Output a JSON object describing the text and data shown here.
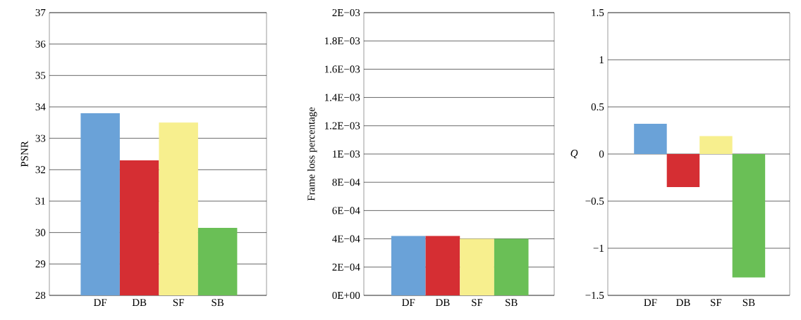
{
  "chart_data": [
    {
      "type": "bar",
      "ylabel": "PSNR",
      "categories": [
        "DF",
        "DB",
        "SF",
        "SB"
      ],
      "values": [
        33.8,
        32.3,
        33.5,
        30.15
      ],
      "colors": [
        "#6aa2d8",
        "#d52e33",
        "#f7ef8e",
        "#6abf56"
      ],
      "ylim": [
        28,
        37
      ],
      "yticks": [
        28,
        29,
        30,
        31,
        32,
        33,
        34,
        35,
        36,
        37
      ],
      "grid": "y"
    },
    {
      "type": "bar",
      "ylabel": "Frame loss percentage",
      "categories": [
        "DF",
        "DB",
        "SF",
        "SB"
      ],
      "values": [
        0.00042,
        0.00042,
        0.0004,
        0.0004
      ],
      "colors": [
        "#6aa2d8",
        "#d52e33",
        "#f7ef8e",
        "#6abf56"
      ],
      "ylim": [
        0,
        0.002
      ],
      "yticks": [
        {
          "value": 0,
          "label": "0E+00"
        },
        {
          "value": 0.0002,
          "label": "2E−04"
        },
        {
          "value": 0.0004,
          "label": "4E−04"
        },
        {
          "value": 0.0006,
          "label": "6E−04"
        },
        {
          "value": 0.0008,
          "label": "8E−04"
        },
        {
          "value": 0.001,
          "label": "1E−03"
        },
        {
          "value": 0.0012,
          "label": "1.2E−03"
        },
        {
          "value": 0.0014,
          "label": "1.4E−03"
        },
        {
          "value": 0.0016,
          "label": "1.6E−03"
        },
        {
          "value": 0.0018,
          "label": "1.8E−03"
        },
        {
          "value": 0.002,
          "label": "2E−03"
        }
      ],
      "grid": "y"
    },
    {
      "type": "bar",
      "ylabel": "Q",
      "categories": [
        "DF",
        "DB",
        "SF",
        "SB"
      ],
      "values": [
        0.32,
        -0.35,
        0.19,
        -1.31
      ],
      "colors": [
        "#6aa2d8",
        "#d52e33",
        "#f7ef8e",
        "#6abf56"
      ],
      "ylim": [
        -1.5,
        1.5
      ],
      "yticks": [
        {
          "value": -1.5,
          "label": "−1.5"
        },
        {
          "value": -1,
          "label": "−1"
        },
        {
          "value": -0.5,
          "label": "−0.5"
        },
        0,
        0.5,
        1,
        1.5
      ],
      "grid": "y"
    }
  ]
}
